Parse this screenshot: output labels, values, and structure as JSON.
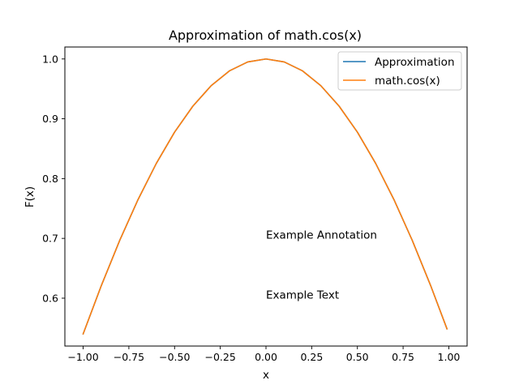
{
  "chart_data": {
    "type": "line",
    "title": "Approximation of math.cos(x)",
    "xlabel": "x",
    "ylabel": "F(x)",
    "xlim": [
      -1.1,
      1.1
    ],
    "ylim": [
      0.52,
      1.02
    ],
    "x_ticks": [
      -1.0,
      -0.75,
      -0.5,
      -0.25,
      0.0,
      0.25,
      0.5,
      0.75,
      1.0
    ],
    "x_tick_labels": [
      "−1.00",
      "−0.75",
      "−0.50",
      "−0.25",
      "0.00",
      "0.25",
      "0.50",
      "0.75",
      "1.00"
    ],
    "y_ticks": [
      0.6,
      0.7,
      0.8,
      0.9,
      1.0
    ],
    "y_tick_labels": [
      "0.6",
      "0.7",
      "0.8",
      "0.9",
      "1.0"
    ],
    "grid": false,
    "legend_position": "top-right",
    "series": [
      {
        "name": "Approximation",
        "color": "#1f77b4",
        "x": [
          -1.0,
          -0.9,
          -0.8,
          -0.7,
          -0.6,
          -0.5,
          -0.4,
          -0.3,
          -0.2,
          -0.1,
          0.0,
          0.1,
          0.2,
          0.3,
          0.4,
          0.5,
          0.6,
          0.7,
          0.8,
          0.9,
          0.99
        ],
        "y": [
          0.5403,
          0.6216,
          0.6967,
          0.7648,
          0.8253,
          0.8776,
          0.9211,
          0.9553,
          0.9801,
          0.995,
          1.0,
          0.995,
          0.9801,
          0.9553,
          0.9211,
          0.8776,
          0.8253,
          0.7648,
          0.6967,
          0.6216,
          0.5487
        ]
      },
      {
        "name": "math.cos(x)",
        "color": "#ff7f0e",
        "x": [
          -1.0,
          -0.9,
          -0.8,
          -0.7,
          -0.6,
          -0.5,
          -0.4,
          -0.3,
          -0.2,
          -0.1,
          0.0,
          0.1,
          0.2,
          0.3,
          0.4,
          0.5,
          0.6,
          0.7,
          0.8,
          0.9,
          0.99
        ],
        "y": [
          0.5403,
          0.6216,
          0.6967,
          0.7648,
          0.8253,
          0.8776,
          0.9211,
          0.9553,
          0.9801,
          0.995,
          1.0,
          0.995,
          0.9801,
          0.9553,
          0.9211,
          0.8776,
          0.8253,
          0.7648,
          0.6967,
          0.6216,
          0.5487
        ]
      }
    ],
    "annotations": [
      {
        "text": "Example Annotation",
        "x": 0.0,
        "y": 0.7
      },
      {
        "text": "Example Text",
        "x": 0.0,
        "y": 0.6
      }
    ]
  }
}
